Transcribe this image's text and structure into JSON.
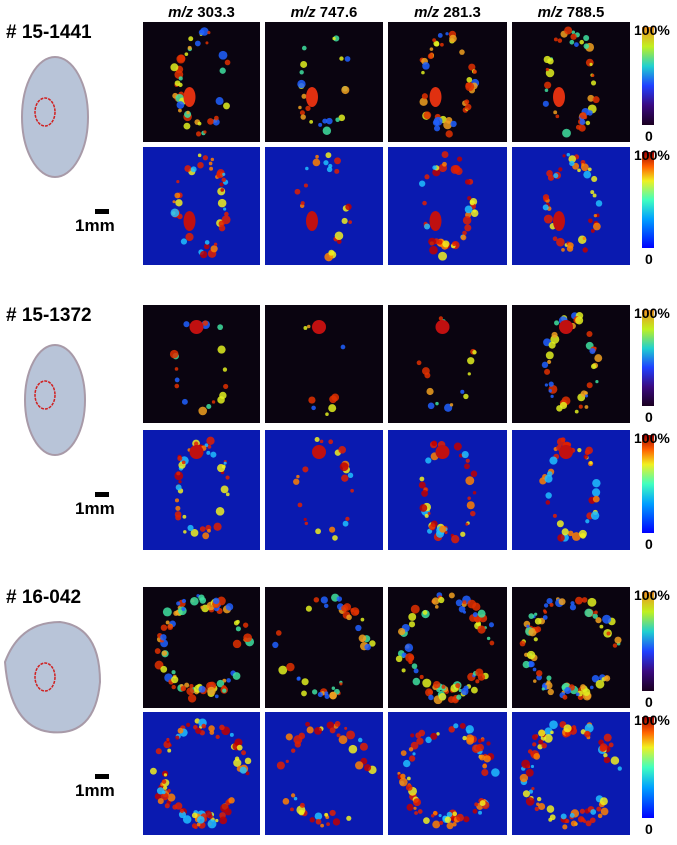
{
  "column_headers": [
    {
      "prefix": "m/z",
      "value": "303.3"
    },
    {
      "prefix": "m/z",
      "value": "747.6"
    },
    {
      "prefix": "m/z",
      "value": "281.3"
    },
    {
      "prefix": "m/z",
      "value": "788.5"
    }
  ],
  "samples": [
    {
      "id": "# 15-1441",
      "scale_label": "1mm",
      "colorbars": [
        {
          "max": "100%",
          "min": "0"
        },
        {
          "max": "100%",
          "min": "0"
        }
      ]
    },
    {
      "id": "# 15-1372",
      "scale_label": "1mm",
      "colorbars": [
        {
          "max": "100%",
          "min": "0"
        },
        {
          "max": "100%",
          "min": "0"
        }
      ]
    },
    {
      "id": "# 16-042",
      "scale_label": "1mm",
      "colorbars": [
        {
          "max": "100%",
          "min": "0"
        },
        {
          "max": "100%",
          "min": "0"
        }
      ]
    }
  ]
}
